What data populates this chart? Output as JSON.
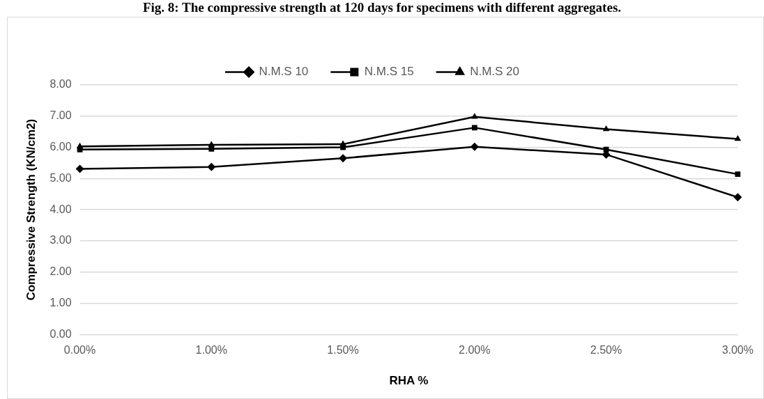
{
  "chart_data": {
    "type": "line",
    "title": "Fig. 8: The compressive strength at 120 days for specimens with different aggregates.",
    "xlabel": "RHA %",
    "ylabel": "Compressive Strength (KN/cm2)",
    "categories": [
      "0.00%",
      "1.00%",
      "1.50%",
      "2.00%",
      "2.50%",
      "3.00%"
    ],
    "series": [
      {
        "name": "N.M.S 10",
        "color": "#000000",
        "marker": "diamond",
        "values": [
          5.31,
          5.37,
          5.65,
          6.02,
          5.77,
          4.4
        ]
      },
      {
        "name": "N.M.S 15",
        "color": "#000000",
        "marker": "square",
        "values": [
          5.93,
          5.95,
          6.0,
          6.63,
          5.93,
          5.14
        ]
      },
      {
        "name": "N.M.S 20",
        "color": "#000000",
        "marker": "triangle",
        "values": [
          6.03,
          6.08,
          6.1,
          6.98,
          6.58,
          6.27
        ]
      }
    ],
    "ylim": [
      0,
      8
    ],
    "yticks": [
      {
        "value": 0,
        "label": "0.00"
      },
      {
        "value": 1,
        "label": "1.00"
      },
      {
        "value": 2,
        "label": "2.00"
      },
      {
        "value": 3,
        "label": "3.00"
      },
      {
        "value": 4,
        "label": "4.00"
      },
      {
        "value": 5,
        "label": "5.00"
      },
      {
        "value": 6,
        "label": "6.00"
      },
      {
        "value": 7,
        "label": "7.00"
      },
      {
        "value": 8,
        "label": "8.00"
      }
    ],
    "grid": "y",
    "legend": "top",
    "line_style": "solid"
  }
}
